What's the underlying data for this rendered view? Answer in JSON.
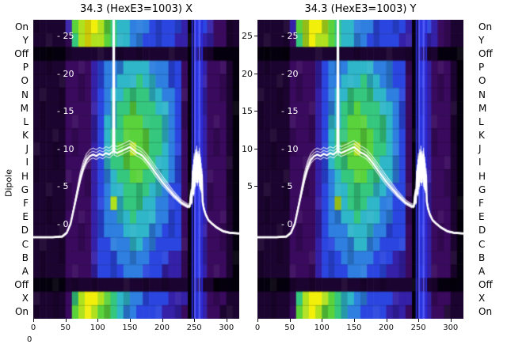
{
  "figure": {
    "left_axis_label": "Dipole",
    "stray_label": "0"
  },
  "chart_data": {
    "type": "heatmap",
    "title": "34.3 (HexE3=1003)",
    "panels": [
      {
        "title": "34.3 (HexE3=1003) X"
      },
      {
        "title": "34.3 (HexE3=1003) Y"
      }
    ],
    "x_ticks": [
      0,
      50,
      100,
      150,
      200,
      250,
      300
    ],
    "xlim": [
      0,
      320
    ],
    "ylim_line": [
      -12.6,
      27.1
    ],
    "yticks_inner_labels": [
      "- 25",
      "- 20",
      "- 15",
      "- 10",
      "- 5",
      "- 0"
    ],
    "yticks_inner_values": [
      25,
      20,
      15,
      10,
      5,
      0
    ],
    "yticks_mid_labels": [
      "25",
      "20",
      "15",
      "10",
      "5"
    ],
    "yticks_mid_values": [
      25,
      20,
      15,
      10,
      5
    ],
    "row_labels": [
      "On",
      "Y",
      "Off",
      "P",
      "O",
      "N",
      "M",
      "L",
      "K",
      "J",
      "I",
      "H",
      "G",
      "F",
      "E",
      "D",
      "C",
      "B",
      "A",
      "Off",
      "X",
      "On"
    ],
    "palette": [
      "#05000d",
      "#1c0430",
      "#3a0a5e",
      "#3520a8",
      "#2b46e0",
      "#2e7fe0",
      "#2fb6c9",
      "#35c77e",
      "#5ad23c",
      "#b0e11e",
      "#f2ef0a"
    ],
    "grid": [
      [
        1,
        1,
        1,
        1,
        1,
        3,
        8,
        9,
        10,
        10,
        9,
        8,
        7,
        6,
        6,
        5,
        5,
        5,
        4,
        4,
        4,
        4,
        4,
        3,
        0,
        4,
        4,
        3,
        2,
        2,
        1,
        1
      ],
      [
        1,
        1,
        1,
        1,
        1,
        2,
        7,
        9,
        10,
        9,
        9,
        8,
        7,
        6,
        6,
        5,
        5,
        4,
        4,
        4,
        4,
        4,
        3,
        3,
        0,
        4,
        3,
        3,
        2,
        2,
        1,
        1
      ],
      [
        0,
        0,
        0,
        0,
        0,
        1,
        1,
        1,
        1,
        1,
        1,
        1,
        1,
        1,
        1,
        1,
        1,
        1,
        1,
        1,
        1,
        1,
        1,
        1,
        0,
        1,
        1,
        1,
        0,
        0,
        0,
        0
      ],
      [
        1,
        1,
        1,
        1,
        1,
        2,
        2,
        2,
        2,
        3,
        4,
        5,
        5,
        5,
        6,
        6,
        6,
        6,
        5,
        5,
        5,
        4,
        4,
        2,
        0,
        4,
        3,
        2,
        2,
        2,
        1,
        0
      ],
      [
        1,
        1,
        1,
        1,
        1,
        2,
        2,
        2,
        2,
        3,
        4,
        5,
        5,
        6,
        6,
        6,
        7,
        6,
        6,
        5,
        5,
        4,
        4,
        2,
        0,
        4,
        3,
        2,
        2,
        2,
        1,
        0
      ],
      [
        1,
        1,
        1,
        1,
        1,
        2,
        2,
        2,
        2,
        3,
        4,
        5,
        6,
        6,
        7,
        7,
        7,
        7,
        6,
        6,
        5,
        5,
        4,
        2,
        0,
        4,
        3,
        2,
        2,
        2,
        1,
        0
      ],
      [
        1,
        1,
        1,
        1,
        1,
        2,
        2,
        2,
        2,
        3,
        4,
        5,
        6,
        7,
        7,
        8,
        7,
        7,
        7,
        6,
        6,
        5,
        4,
        2,
        0,
        4,
        3,
        2,
        2,
        2,
        1,
        0
      ],
      [
        1,
        1,
        1,
        1,
        1,
        2,
        2,
        2,
        2,
        3,
        4,
        6,
        6,
        7,
        8,
        8,
        8,
        7,
        7,
        7,
        6,
        5,
        4,
        2,
        0,
        4,
        3,
        2,
        2,
        2,
        1,
        0
      ],
      [
        1,
        1,
        1,
        1,
        1,
        2,
        2,
        2,
        2,
        3,
        4,
        6,
        7,
        7,
        8,
        8,
        8,
        8,
        7,
        7,
        6,
        5,
        4,
        2,
        0,
        4,
        3,
        2,
        2,
        2,
        1,
        0
      ],
      [
        1,
        1,
        1,
        1,
        1,
        2,
        2,
        2,
        2,
        3,
        4,
        6,
        7,
        8,
        8,
        9,
        8,
        8,
        7,
        7,
        6,
        5,
        4,
        2,
        0,
        4,
        3,
        2,
        2,
        2,
        1,
        0
      ],
      [
        1,
        1,
        1,
        1,
        1,
        2,
        2,
        2,
        2,
        3,
        4,
        6,
        7,
        7,
        8,
        8,
        8,
        8,
        7,
        6,
        6,
        5,
        4,
        2,
        0,
        4,
        3,
        2,
        2,
        2,
        1,
        0
      ],
      [
        1,
        1,
        1,
        1,
        1,
        2,
        2,
        2,
        2,
        3,
        4,
        5,
        6,
        7,
        7,
        8,
        8,
        7,
        7,
        6,
        6,
        5,
        4,
        2,
        0,
        4,
        3,
        2,
        2,
        2,
        1,
        0
      ],
      [
        1,
        1,
        1,
        1,
        1,
        2,
        2,
        2,
        2,
        3,
        4,
        5,
        6,
        6,
        7,
        7,
        7,
        7,
        6,
        6,
        5,
        4,
        4,
        2,
        0,
        4,
        3,
        2,
        2,
        2,
        1,
        0
      ],
      [
        1,
        1,
        1,
        1,
        1,
        2,
        2,
        2,
        2,
        3,
        4,
        5,
        9,
        6,
        7,
        7,
        7,
        6,
        6,
        5,
        5,
        4,
        4,
        2,
        0,
        4,
        3,
        2,
        2,
        2,
        1,
        0
      ],
      [
        1,
        1,
        1,
        1,
        1,
        2,
        2,
        2,
        2,
        3,
        4,
        5,
        5,
        6,
        6,
        7,
        6,
        6,
        6,
        5,
        5,
        4,
        4,
        2,
        0,
        4,
        3,
        2,
        2,
        2,
        1,
        0
      ],
      [
        1,
        1,
        1,
        1,
        1,
        2,
        2,
        2,
        2,
        3,
        4,
        5,
        5,
        5,
        6,
        6,
        6,
        6,
        5,
        5,
        4,
        4,
        4,
        2,
        0,
        4,
        3,
        2,
        2,
        2,
        1,
        0
      ],
      [
        1,
        1,
        1,
        1,
        1,
        2,
        2,
        2,
        2,
        3,
        4,
        4,
        5,
        5,
        5,
        6,
        6,
        5,
        5,
        4,
        4,
        4,
        4,
        2,
        0,
        4,
        3,
        2,
        2,
        2,
        1,
        0
      ],
      [
        1,
        1,
        1,
        1,
        1,
        2,
        2,
        2,
        2,
        3,
        4,
        4,
        4,
        5,
        5,
        5,
        5,
        5,
        4,
        4,
        4,
        3,
        3,
        2,
        0,
        4,
        3,
        2,
        2,
        2,
        1,
        0
      ],
      [
        1,
        1,
        1,
        1,
        1,
        2,
        2,
        2,
        2,
        3,
        4,
        4,
        4,
        4,
        5,
        5,
        5,
        4,
        4,
        4,
        3,
        3,
        3,
        2,
        0,
        4,
        3,
        2,
        2,
        2,
        1,
        0
      ],
      [
        0,
        0,
        0,
        0,
        0,
        1,
        1,
        1,
        1,
        1,
        1,
        1,
        1,
        1,
        1,
        1,
        1,
        1,
        1,
        1,
        1,
        1,
        1,
        1,
        0,
        1,
        1,
        1,
        0,
        0,
        0,
        0
      ],
      [
        1,
        1,
        1,
        1,
        1,
        2,
        7,
        9,
        10,
        10,
        9,
        8,
        7,
        6,
        6,
        5,
        5,
        4,
        4,
        4,
        4,
        3,
        3,
        3,
        0,
        4,
        3,
        2,
        2,
        2,
        1,
        1
      ],
      [
        1,
        1,
        1,
        1,
        1,
        2,
        8,
        9,
        10,
        9,
        8,
        8,
        7,
        6,
        5,
        5,
        4,
        4,
        4,
        4,
        3,
        3,
        3,
        2,
        0,
        4,
        3,
        2,
        2,
        1,
        1,
        1
      ]
    ],
    "stripes": {
      "x": [
        247,
        251,
        254,
        258,
        262
      ],
      "colors": [
        "#2a2ae0",
        "#5a5aff"
      ]
    },
    "trace": {
      "color": "#ffffff",
      "bundle_offsets": [
        0,
        0.45,
        -0.45,
        0.85
      ],
      "points": [
        [
          0,
          -1.8
        ],
        [
          30,
          -1.8
        ],
        [
          45,
          -1.7
        ],
        [
          52,
          -1.2
        ],
        [
          58,
          0
        ],
        [
          63,
          2
        ],
        [
          68,
          4
        ],
        [
          73,
          6
        ],
        [
          78,
          7.5
        ],
        [
          83,
          8.5
        ],
        [
          88,
          9
        ],
        [
          93,
          9.2
        ],
        [
          98,
          9
        ],
        [
          103,
          9.3
        ],
        [
          108,
          9.1
        ],
        [
          113,
          9.4
        ],
        [
          118,
          9.2
        ],
        [
          122,
          9.5
        ],
        [
          124,
          9.6
        ],
        [
          125,
          40
        ],
        [
          126,
          9.6
        ],
        [
          130,
          9.4
        ],
        [
          135,
          9.6
        ],
        [
          140,
          9.8
        ],
        [
          145,
          10
        ],
        [
          150,
          10.2
        ],
        [
          153,
          10
        ],
        [
          156,
          9.8
        ],
        [
          160,
          9.5
        ],
        [
          165,
          9.3
        ],
        [
          170,
          9
        ],
        [
          174,
          8.6
        ],
        [
          178,
          8.2
        ],
        [
          183,
          7.6
        ],
        [
          188,
          7
        ],
        [
          194,
          6.3
        ],
        [
          200,
          5.6
        ],
        [
          206,
          5
        ],
        [
          212,
          4.4
        ],
        [
          218,
          3.8
        ],
        [
          224,
          3.3
        ],
        [
          230,
          2.8
        ],
        [
          236,
          2.5
        ],
        [
          240,
          2.3
        ],
        [
          243,
          2.3
        ],
        [
          245,
          4
        ],
        [
          246,
          2.8
        ],
        [
          248,
          7
        ],
        [
          249,
          4
        ],
        [
          250,
          8.5
        ],
        [
          251,
          5
        ],
        [
          252,
          9
        ],
        [
          253,
          6
        ],
        [
          254,
          9.5
        ],
        [
          255,
          5.5
        ],
        [
          256,
          8.8
        ],
        [
          257,
          6
        ],
        [
          258,
          9.2
        ],
        [
          259,
          5
        ],
        [
          260,
          8
        ],
        [
          261,
          4.5
        ],
        [
          262,
          6.5
        ],
        [
          263,
          3
        ],
        [
          265,
          2
        ],
        [
          268,
          1.2
        ],
        [
          272,
          0.5
        ],
        [
          278,
          0
        ],
        [
          285,
          -0.5
        ],
        [
          295,
          -1
        ],
        [
          305,
          -1.2
        ],
        [
          320,
          -1.3
        ]
      ]
    }
  }
}
